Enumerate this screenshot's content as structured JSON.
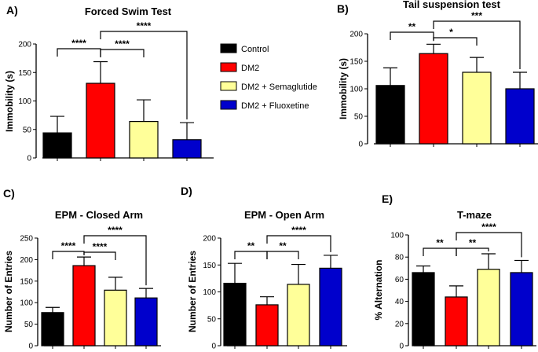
{
  "legend": [
    {
      "name": "Control",
      "color": "#000000"
    },
    {
      "name": "DM2",
      "color": "#ff0000"
    },
    {
      "name": "DM2 + Semaglutide",
      "color": "#ffff99"
    },
    {
      "name": "DM2 + Fluoxetine",
      "color": "#0000cc"
    }
  ],
  "chart_data": [
    {
      "type": "bar",
      "letter": "A)",
      "title": "Forced Swim Test",
      "ylabel": "Immobility (s)",
      "ylim": [
        0,
        200
      ],
      "yticks": [
        0,
        50,
        100,
        150,
        200
      ],
      "series": [
        {
          "name": "Control",
          "value": 44,
          "error": 29
        },
        {
          "name": "DM2",
          "value": 131,
          "error": 38
        },
        {
          "name": "DM2 + Semaglutide",
          "value": 64,
          "error": 38
        },
        {
          "name": "DM2 + Fluoxetine",
          "value": 32,
          "error": 30
        }
      ],
      "significance": [
        {
          "from": 0,
          "to": 1,
          "label": "****"
        },
        {
          "from": 1,
          "to": 2,
          "label": "****"
        },
        {
          "from": 1,
          "to": 3,
          "label": "****"
        }
      ]
    },
    {
      "type": "bar",
      "letter": "B)",
      "title": "Tail suspension test",
      "ylabel": "Immobility (s)",
      "ylim": [
        0,
        200
      ],
      "yticks": [
        0,
        50,
        100,
        150,
        200
      ],
      "series": [
        {
          "name": "Control",
          "value": 106,
          "error": 32
        },
        {
          "name": "DM2",
          "value": 164,
          "error": 17
        },
        {
          "name": "DM2 + Semaglutide",
          "value": 130,
          "error": 27
        },
        {
          "name": "DM2 + Fluoxetine",
          "value": 100,
          "error": 30
        }
      ],
      "significance": [
        {
          "from": 0,
          "to": 1,
          "label": "**"
        },
        {
          "from": 1,
          "to": 2,
          "label": "*"
        },
        {
          "from": 1,
          "to": 3,
          "label": "***"
        }
      ]
    },
    {
      "type": "bar",
      "letter": "C)",
      "title": "EPM - Closed Arm",
      "ylabel": "Number of Entries",
      "ylim": [
        0,
        250
      ],
      "yticks": [
        0,
        50,
        100,
        150,
        200,
        250
      ],
      "series": [
        {
          "name": "Control",
          "value": 77,
          "error": 12
        },
        {
          "name": "DM2",
          "value": 186,
          "error": 20
        },
        {
          "name": "DM2 + Semaglutide",
          "value": 129,
          "error": 30
        },
        {
          "name": "DM2 + Fluoxetine",
          "value": 111,
          "error": 22
        }
      ],
      "significance": [
        {
          "from": 0,
          "to": 1,
          "label": "****"
        },
        {
          "from": 1,
          "to": 2,
          "label": "****"
        },
        {
          "from": 1,
          "to": 3,
          "label": "****"
        }
      ]
    },
    {
      "type": "bar",
      "letter": "D)",
      "title": "EPM - Open Arm",
      "ylabel": "Number of Entries",
      "ylim": [
        0,
        200
      ],
      "yticks": [
        0,
        50,
        100,
        150,
        200
      ],
      "series": [
        {
          "name": "Control",
          "value": 116,
          "error": 37
        },
        {
          "name": "DM2",
          "value": 76,
          "error": 15
        },
        {
          "name": "DM2 + Semaglutide",
          "value": 114,
          "error": 37
        },
        {
          "name": "DM2 + Fluoxetine",
          "value": 144,
          "error": 24
        }
      ],
      "significance": [
        {
          "from": 0,
          "to": 1,
          "label": "**"
        },
        {
          "from": 1,
          "to": 2,
          "label": "**"
        },
        {
          "from": 1,
          "to": 3,
          "label": "****"
        }
      ]
    },
    {
      "type": "bar",
      "letter": "E)",
      "title": "T-maze",
      "ylabel": "% Alternation",
      "ylim": [
        0,
        100
      ],
      "yticks": [
        0,
        20,
        40,
        60,
        80,
        100
      ],
      "series": [
        {
          "name": "Control",
          "value": 66,
          "error": 6
        },
        {
          "name": "DM2",
          "value": 44,
          "error": 10
        },
        {
          "name": "DM2 + Semaglutide",
          "value": 69,
          "error": 14
        },
        {
          "name": "DM2 + Fluoxetine",
          "value": 66,
          "error": 11
        }
      ],
      "significance": [
        {
          "from": 0,
          "to": 1,
          "label": "**"
        },
        {
          "from": 1,
          "to": 2,
          "label": "**"
        },
        {
          "from": 1,
          "to": 3,
          "label": "****"
        }
      ]
    }
  ]
}
